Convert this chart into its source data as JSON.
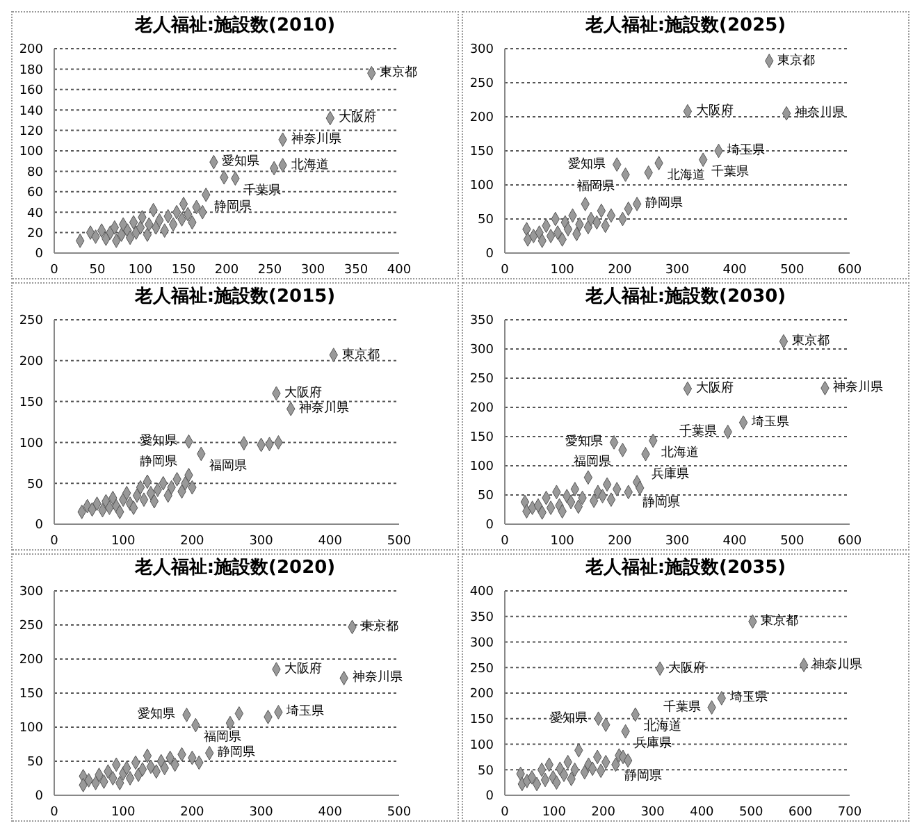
{
  "chart_data": [
    {
      "type": "scatter",
      "title": "老人福祉:施設数(2010)",
      "color": "#999999",
      "marker": "diamond",
      "grid": "y",
      "xlim": [
        0,
        400
      ],
      "xticks": [
        0,
        50,
        100,
        150,
        200,
        250,
        300,
        350,
        400
      ],
      "ylim": [
        0,
        200
      ],
      "yticks": [
        0,
        20,
        40,
        60,
        80,
        100,
        120,
        140,
        160,
        180,
        200
      ],
      "x": [
        368,
        320,
        265,
        185,
        265,
        255,
        210,
        197,
        176,
        30,
        42,
        48,
        55,
        60,
        65,
        70,
        72,
        78,
        80,
        85,
        88,
        92,
        95,
        100,
        102,
        108,
        110,
        115,
        118,
        122,
        128,
        132,
        138,
        142,
        148,
        150,
        155,
        160,
        165,
        172
      ],
      "values": [
        176,
        132,
        111,
        89,
        86,
        83,
        73,
        74,
        57,
        12,
        20,
        16,
        22,
        14,
        20,
        25,
        12,
        18,
        28,
        22,
        15,
        30,
        20,
        25,
        35,
        18,
        28,
        42,
        25,
        32,
        22,
        36,
        28,
        40,
        33,
        48,
        38,
        30,
        45,
        40
      ],
      "annotations": [
        {
          "text": "東京都",
          "x": 368,
          "y": 176
        },
        {
          "text": "大阪府",
          "x": 320,
          "y": 132
        },
        {
          "text": "神奈川県",
          "x": 265,
          "y": 111
        },
        {
          "text": "愛知県",
          "x": 185,
          "y": 89
        },
        {
          "text": "北海道",
          "x": 265,
          "y": 86
        },
        {
          "text": "千葉県",
          "x": 210,
          "y": 73
        },
        {
          "text": "静岡県",
          "x": 176,
          "y": 57
        }
      ]
    },
    {
      "type": "scatter",
      "title": "老人福祉:施設数(2025)",
      "color": "#999999",
      "marker": "diamond",
      "grid": "y",
      "xlim": [
        0,
        600
      ],
      "xticks": [
        0,
        100,
        200,
        300,
        400,
        500,
        600
      ],
      "ylim": [
        0,
        300
      ],
      "yticks": [
        0,
        50,
        100,
        150,
        200,
        250,
        300
      ],
      "x": [
        460,
        318,
        490,
        372,
        345,
        268,
        195,
        210,
        250,
        230,
        140,
        38,
        40,
        50,
        60,
        65,
        72,
        80,
        88,
        92,
        100,
        105,
        110,
        118,
        125,
        130,
        145,
        150,
        160,
        168,
        175,
        185,
        205,
        215
      ],
      "values": [
        282,
        208,
        205,
        150,
        137,
        132,
        130,
        115,
        118,
        72,
        72,
        35,
        20,
        25,
        30,
        18,
        40,
        25,
        50,
        30,
        20,
        45,
        35,
        55,
        28,
        42,
        38,
        50,
        45,
        62,
        40,
        55,
        50,
        65
      ],
      "annotations": [
        {
          "text": "東京都",
          "x": 460,
          "y": 282
        },
        {
          "text": "大阪府",
          "x": 318,
          "y": 208
        },
        {
          "text": "神奈川県",
          "x": 490,
          "y": 205
        },
        {
          "text": "埼玉県",
          "x": 372,
          "y": 150
        },
        {
          "text": "千葉県",
          "x": 345,
          "y": 137
        },
        {
          "text": "北海道",
          "x": 268,
          "y": 132
        },
        {
          "text": "愛知県",
          "x": 195,
          "y": 130
        },
        {
          "text": "福岡県",
          "x": 210,
          "y": 115
        },
        {
          "text": "静岡県",
          "x": 230,
          "y": 72
        }
      ]
    },
    {
      "type": "scatter",
      "title": "老人福祉:施設数(2015)",
      "color": "#999999",
      "marker": "diamond",
      "grid": "y",
      "xlim": [
        0,
        500
      ],
      "xticks": [
        0,
        100,
        200,
        300,
        400,
        500
      ],
      "ylim": [
        0,
        250
      ],
      "yticks": [
        0,
        50,
        100,
        150,
        200,
        250
      ],
      "x": [
        405,
        322,
        343,
        195,
        213,
        195,
        275,
        300,
        325,
        312,
        40,
        48,
        55,
        62,
        70,
        75,
        80,
        85,
        90,
        95,
        100,
        105,
        110,
        115,
        120,
        125,
        130,
        135,
        140,
        145,
        150,
        158,
        165,
        170,
        178,
        185,
        190,
        200
      ],
      "values": [
        207,
        160,
        141,
        101,
        86,
        60,
        99,
        97,
        100,
        98,
        15,
        22,
        18,
        25,
        17,
        28,
        20,
        32,
        22,
        15,
        30,
        38,
        25,
        20,
        35,
        45,
        30,
        52,
        38,
        28,
        42,
        50,
        35,
        45,
        55,
        40,
        50,
        45
      ],
      "annotations": [
        {
          "text": "東京都",
          "x": 405,
          "y": 207
        },
        {
          "text": "大阪府",
          "x": 322,
          "y": 160
        },
        {
          "text": "神奈川県",
          "x": 343,
          "y": 141
        },
        {
          "text": "愛知県",
          "x": 195,
          "y": 101
        },
        {
          "text": "福岡県",
          "x": 213,
          "y": 86
        },
        {
          "text": "静岡県",
          "x": 195,
          "y": 60
        }
      ]
    },
    {
      "type": "scatter",
      "title": "老人福祉:施設数(2030)",
      "color": "#999999",
      "marker": "diamond",
      "grid": "y",
      "xlim": [
        0,
        600
      ],
      "xticks": [
        0,
        100,
        200,
        300,
        400,
        500,
        600
      ],
      "ylim": [
        0,
        350
      ],
      "yticks": [
        0,
        50,
        100,
        150,
        200,
        250,
        300,
        350
      ],
      "x": [
        485,
        318,
        557,
        415,
        388,
        258,
        190,
        205,
        245,
        230,
        145,
        35,
        38,
        48,
        58,
        65,
        72,
        80,
        90,
        95,
        100,
        108,
        115,
        122,
        128,
        135,
        155,
        162,
        170,
        178,
        185,
        195,
        215,
        235
      ],
      "values": [
        313,
        232,
        233,
        174,
        158,
        143,
        140,
        127,
        120,
        72,
        80,
        38,
        22,
        28,
        32,
        20,
        45,
        28,
        55,
        32,
        22,
        48,
        38,
        60,
        30,
        45,
        40,
        55,
        48,
        68,
        42,
        60,
        55,
        62
      ],
      "annotations": [
        {
          "text": "東京都",
          "x": 485,
          "y": 313
        },
        {
          "text": "大阪府",
          "x": 318,
          "y": 232
        },
        {
          "text": "神奈川県",
          "x": 557,
          "y": 233
        },
        {
          "text": "埼玉県",
          "x": 415,
          "y": 174
        },
        {
          "text": "千葉県",
          "x": 388,
          "y": 158
        },
        {
          "text": "北海道",
          "x": 258,
          "y": 143
        },
        {
          "text": "愛知県",
          "x": 190,
          "y": 140
        },
        {
          "text": "福岡県",
          "x": 205,
          "y": 127
        },
        {
          "text": "兵庫県",
          "x": 245,
          "y": 120
        },
        {
          "text": "静岡県",
          "x": 230,
          "y": 72
        }
      ]
    },
    {
      "type": "scatter",
      "title": "老人福祉:施設数(2020)",
      "color": "#999999",
      "marker": "diamond",
      "grid": "y",
      "xlim": [
        0,
        500
      ],
      "xticks": [
        0,
        100,
        200,
        300,
        400,
        500
      ],
      "ylim": [
        0,
        300
      ],
      "yticks": [
        0,
        50,
        100,
        150,
        200,
        250,
        300
      ],
      "x": [
        432,
        322,
        420,
        192,
        205,
        255,
        268,
        325,
        310,
        225,
        42,
        42,
        50,
        60,
        65,
        72,
        78,
        85,
        90,
        95,
        100,
        105,
        110,
        118,
        122,
        128,
        135,
        140,
        148,
        155,
        160,
        168,
        175,
        185,
        200,
        210
      ],
      "values": [
        247,
        185,
        172,
        118,
        103,
        106,
        120,
        122,
        115,
        62,
        28,
        15,
        22,
        18,
        30,
        20,
        35,
        25,
        45,
        18,
        32,
        40,
        25,
        48,
        30,
        38,
        58,
        42,
        35,
        50,
        40,
        55,
        45,
        60,
        55,
        48
      ],
      "annotations": [
        {
          "text": "東京都",
          "x": 432,
          "y": 247
        },
        {
          "text": "大阪府",
          "x": 322,
          "y": 185
        },
        {
          "text": "神奈川県",
          "x": 420,
          "y": 172
        },
        {
          "text": "愛知県",
          "x": 192,
          "y": 118
        },
        {
          "text": "福岡県",
          "x": 205,
          "y": 103
        },
        {
          "text": "埼玉県",
          "x": 325,
          "y": 122
        },
        {
          "text": "静岡県",
          "x": 225,
          "y": 62
        }
      ]
    },
    {
      "type": "scatter",
      "title": "老人福祉:施設数(2035)",
      "color": "#999999",
      "marker": "diamond",
      "grid": "y",
      "xlim": [
        0,
        700
      ],
      "xticks": [
        0,
        100,
        200,
        300,
        400,
        500,
        600,
        700
      ],
      "ylim": [
        0,
        400
      ],
      "yticks": [
        0,
        50,
        100,
        150,
        200,
        250,
        300,
        350,
        400
      ],
      "x": [
        503,
        315,
        607,
        440,
        420,
        265,
        190,
        205,
        245,
        232,
        150,
        32,
        35,
        45,
        55,
        65,
        75,
        82,
        90,
        98,
        105,
        112,
        120,
        128,
        135,
        142,
        162,
        170,
        178,
        188,
        195,
        205,
        225,
        240,
        250
      ],
      "values": [
        340,
        248,
        255,
        190,
        172,
        158,
        150,
        138,
        125,
        78,
        88,
        42,
        22,
        28,
        35,
        22,
        50,
        30,
        60,
        35,
        25,
        52,
        40,
        65,
        32,
        50,
        45,
        60,
        52,
        75,
        48,
        65,
        60,
        75,
        68
      ],
      "annotations": [
        {
          "text": "東京都",
          "x": 503,
          "y": 340
        },
        {
          "text": "大阪府",
          "x": 315,
          "y": 248
        },
        {
          "text": "神奈川県",
          "x": 607,
          "y": 255
        },
        {
          "text": "埼玉県",
          "x": 440,
          "y": 190
        },
        {
          "text": "千葉県",
          "x": 420,
          "y": 172
        },
        {
          "text": "北海道",
          "x": 265,
          "y": 158
        },
        {
          "text": "愛知県",
          "x": 190,
          "y": 150
        },
        {
          "text": "兵庫県",
          "x": 245,
          "y": 125
        },
        {
          "text": "静岡県",
          "x": 232,
          "y": 78
        }
      ]
    }
  ]
}
